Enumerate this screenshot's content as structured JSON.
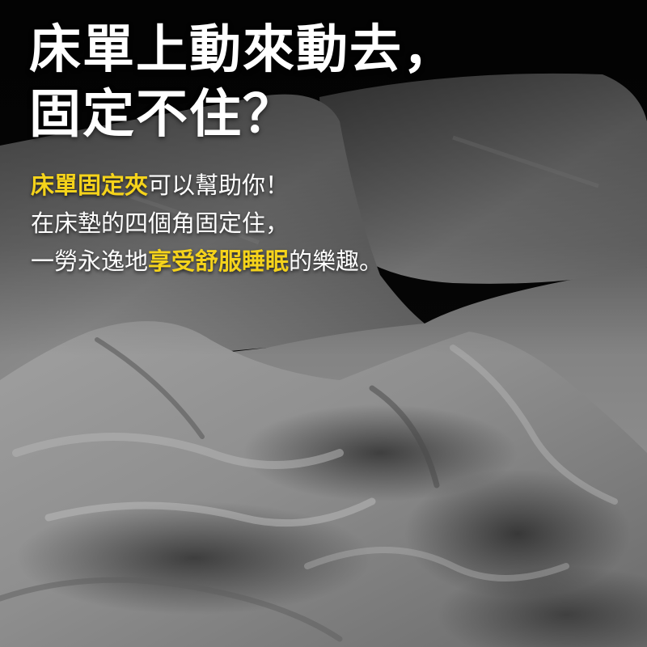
{
  "headline": {
    "line1": "床單上動來動去，",
    "line2": "固定不住？"
  },
  "body": {
    "line1_highlight": "床單固定夾",
    "line1_rest": "可以幫助你！",
    "line2": "在床墊的四個角固定住，",
    "line3_prefix": "一勞永逸地",
    "line3_highlight": "享受舒服睡眠",
    "line3_suffix": "的樂趣。"
  },
  "colors": {
    "highlight": "#f5d31b",
    "text": "#ffffff",
    "background": "#050505"
  }
}
